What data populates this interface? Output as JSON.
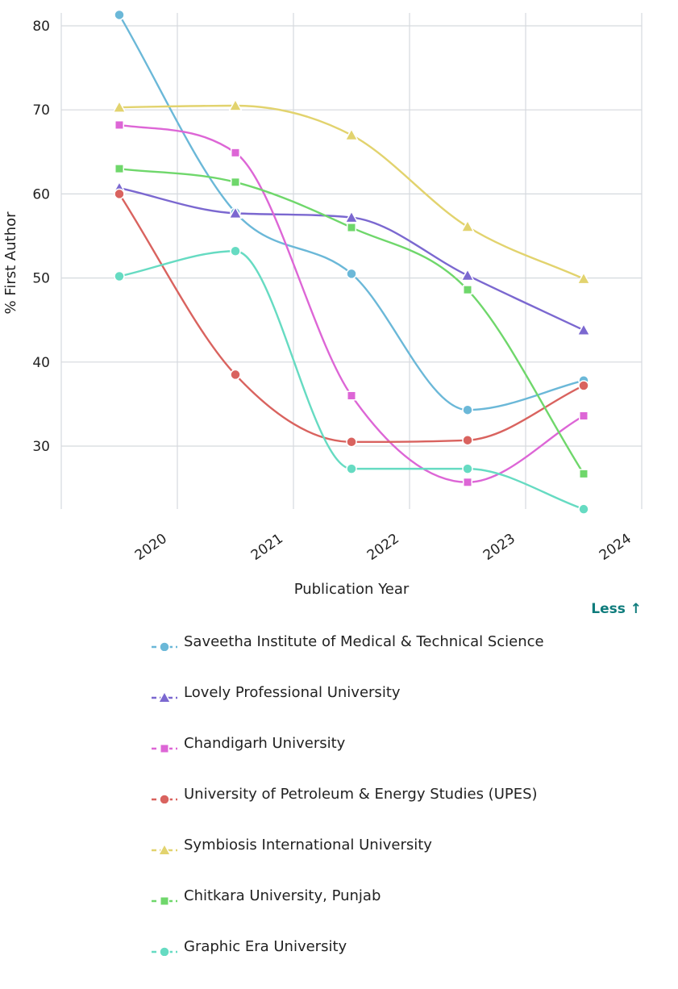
{
  "chart_data": {
    "type": "line",
    "title": "",
    "xlabel": "Publication Year",
    "ylabel": "% First Author",
    "x": [
      "2020",
      "2021",
      "2022",
      "2023",
      "2024"
    ],
    "yticks": [
      30,
      40,
      50,
      60,
      70,
      80
    ],
    "ylim": [
      23.5,
      82
    ],
    "grid": true,
    "legend_position": "bottom",
    "series": [
      {
        "name": "Saveetha Institute of Medical & Technical Science",
        "color": "#6bb8d8",
        "marker": "circle",
        "values": [
          81.3,
          57.8,
          50.5,
          34.3,
          37.8
        ]
      },
      {
        "name": "Lovely Professional University",
        "color": "#7b68d0",
        "marker": "triangle",
        "values": [
          60.7,
          57.7,
          57.2,
          50.3,
          43.8
        ]
      },
      {
        "name": "Chandigarh University",
        "color": "#dd66d6",
        "marker": "square",
        "values": [
          68.2,
          64.9,
          36.0,
          25.7,
          33.6
        ]
      },
      {
        "name": "University of Petroleum & Energy Studies (UPES)",
        "color": "#d9635f",
        "marker": "circle",
        "values": [
          60.0,
          38.5,
          30.5,
          30.7,
          37.2
        ]
      },
      {
        "name": "Symbiosis International University",
        "color": "#e2d36e",
        "marker": "triangle",
        "values": [
          70.3,
          70.5,
          67.0,
          56.1,
          49.9
        ]
      },
      {
        "name": "Chitkara University, Punjab",
        "color": "#6fd76b",
        "marker": "square",
        "values": [
          63.0,
          61.4,
          56.0,
          48.6,
          26.7
        ]
      },
      {
        "name": "Graphic Era University",
        "color": "#66dbc2",
        "marker": "circle",
        "values": [
          50.2,
          53.2,
          27.3,
          27.3,
          22.5
        ]
      }
    ]
  },
  "controls": {
    "toggle_label": "Less ↑"
  }
}
